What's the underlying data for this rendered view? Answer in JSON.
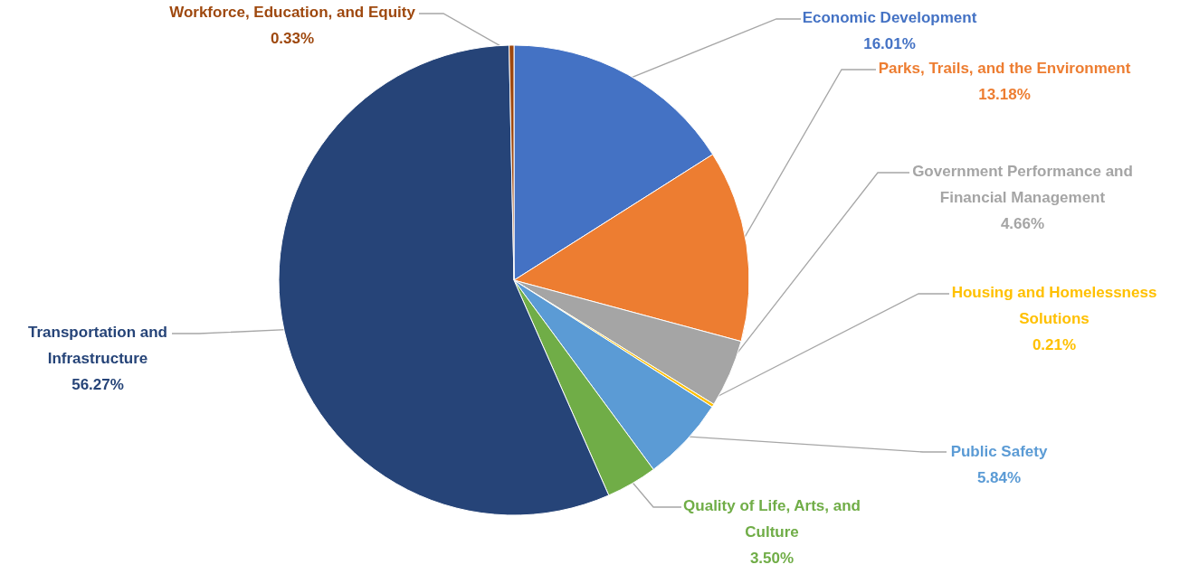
{
  "chart_data": {
    "type": "pie",
    "categories": [
      "Economic Development",
      "Parks, Trails, and the Environment",
      "Government Performance and Financial Management",
      "Housing and Homelessness Solutions",
      "Public Safety",
      "Quality of Life, Arts, and Culture",
      "Transportation and Infrastructure",
      "Workforce, Education, and Equity"
    ],
    "values": [
      16.01,
      13.18,
      4.66,
      0.21,
      5.84,
      3.5,
      56.27,
      0.33
    ],
    "colors": [
      "#4472c4",
      "#ed7d31",
      "#a5a5a5",
      "#ffc000",
      "#5b9bd5",
      "#70ad47",
      "#264478",
      "#9e480e"
    ],
    "value_labels": [
      "16.01%",
      "13.18%",
      "4.66%",
      "0.21%",
      "5.84%",
      "3.50%",
      "56.27%",
      "0.33%"
    ]
  }
}
